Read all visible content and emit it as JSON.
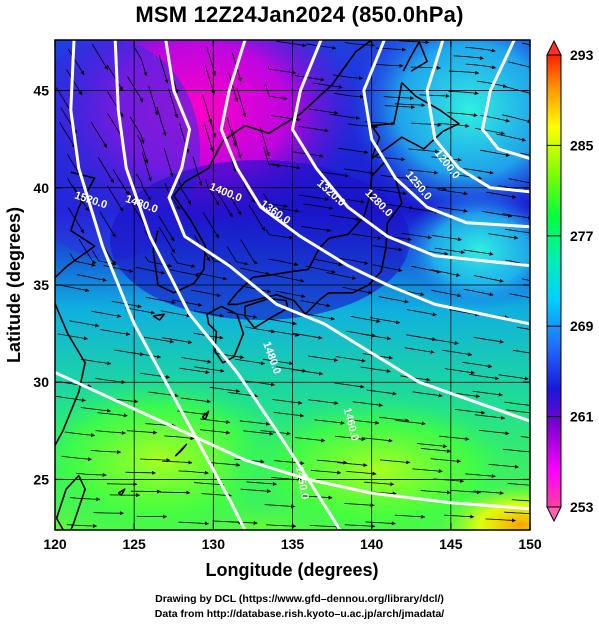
{
  "title": "MSM 12Z24Jan2024 (850.0hPa)",
  "x_axis": {
    "label": "Longitude (degrees)",
    "range": [
      120,
      150
    ],
    "ticks": [
      "120",
      "125",
      "130",
      "135",
      "140",
      "145",
      "150"
    ]
  },
  "y_axis": {
    "label": "Latitude  (degrees)",
    "range": [
      22.4,
      47.6
    ],
    "ticks": [
      "25",
      "30",
      "35",
      "40",
      "45"
    ]
  },
  "colorbar": {
    "min": 253,
    "max": 293,
    "labels": [
      "293",
      "285",
      "277",
      "269",
      "261",
      "253"
    ],
    "colors": [
      "#ff3a80",
      "#ff00ff",
      "#7a00c8",
      "#1a1ad8",
      "#1a60ff",
      "#00c8ff",
      "#00e8c0",
      "#00ff60",
      "#7fff00",
      "#ffff00",
      "#ffa500",
      "#ff4000"
    ]
  },
  "contours": {
    "color": "#ffffff",
    "labels": [
      "1520.0",
      "1480.0",
      "1400.0",
      "1360.0",
      "1320.0",
      "1280.0",
      "1250.0",
      "1200.0",
      "1480.0",
      "1460.0",
      "1450.0"
    ]
  },
  "credits": {
    "line1": "Drawing by DCL (https://www.gfd–dennou.org/library/dcl/)",
    "line2": "Data from http://database.rish.kyoto–u.ac.jp/arch/jmadata/"
  }
}
